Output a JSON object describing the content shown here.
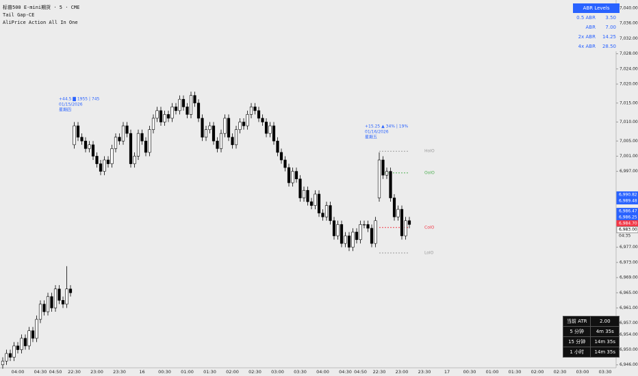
{
  "header": {
    "symbol": "标普500 E-mini期货 · 5 · CME",
    "indicators": [
      "Tail Gap-CE",
      "AliPrice Action All In One"
    ]
  },
  "chart_data": {
    "type": "candlestick",
    "categories": [
      null,
      null,
      null,
      null,
      "04:00",
      null,
      null,
      null,
      null,
      null,
      "04:30",
      null,
      null,
      null,
      "04:50",
      null,
      null,
      null,
      null,
      "22:30",
      null,
      null,
      null,
      null,
      null,
      "23:00",
      null,
      null,
      null,
      null,
      null,
      "23:30",
      null,
      null,
      null,
      null,
      null,
      "16",
      null,
      null,
      null,
      null,
      null,
      "00:30",
      null,
      null,
      null,
      null,
      null,
      "01:00",
      null,
      null,
      null,
      null,
      null,
      "01:30",
      null,
      null,
      null,
      null,
      null,
      "02:00",
      null,
      null,
      null,
      null,
      null,
      "02:30",
      null,
      null,
      null,
      null,
      null,
      "03:00",
      null,
      null,
      null,
      null,
      null,
      "03:30",
      null,
      null,
      null,
      null,
      null,
      "04:00",
      null,
      null,
      null,
      null,
      null,
      "04:30",
      null,
      null,
      null,
      "04:50",
      null,
      null,
      null,
      null,
      "22:30",
      null,
      null,
      null,
      null,
      null,
      "23:00",
      null,
      null,
      null,
      null,
      null,
      "23:30",
      null,
      null,
      null,
      null,
      null,
      "17",
      null,
      null,
      null,
      null,
      null,
      "00:30",
      null,
      null,
      null,
      null,
      null,
      "01:00",
      null,
      null,
      null,
      null,
      null,
      "01:30",
      null,
      null,
      null,
      null,
      null,
      "02:00",
      null,
      null,
      null,
      null,
      null,
      "02:30",
      null,
      null,
      null,
      null,
      null,
      "03:00",
      null,
      null,
      null,
      null,
      null,
      "03:30",
      null,
      null
    ],
    "open": [
      6946,
      6947,
      6949,
      6948,
      6951,
      6950,
      6953,
      6951,
      6955,
      6953,
      6958,
      6962,
      6960,
      6964,
      6961,
      6966,
      6963,
      6962,
      6966,
      7004,
      7009,
      7006,
      7005,
      7003,
      7004,
      7001,
      6999,
      6997,
      7000,
      6999,
      7003,
      7006,
      7005,
      7009,
      7007,
      6999,
      7001,
      7007,
      7005,
      7002,
      7008,
      7011,
      7013,
      7010,
      7012,
      7011,
      7014,
      7013,
      7016,
      7014,
      7012,
      7017,
      7015,
      7011,
      7006,
      7008,
      7009,
      7005,
      7003,
      7007,
      7011,
      7006,
      7004,
      7008,
      7010,
      7009,
      7012,
      7014,
      7013,
      7011,
      7010,
      7007,
      7009,
      7005,
      7002,
      7000,
      6998,
      6994,
      6997,
      6995,
      6990,
      6992,
      6989,
      6988,
      6991,
      6986,
      6985,
      6988,
      6984,
      6980,
      6983,
      6978,
      6980,
      6977,
      6981,
      6979,
      6983,
      6983,
      6982,
      6978,
      6990,
      7000,
      6996,
      6997,
      6990,
      6985,
      6987,
      6980,
      6984,
      null,
      null,
      null,
      null,
      null,
      null,
      null,
      null,
      null,
      null,
      null,
      null,
      null,
      null,
      null,
      null,
      null,
      null,
      null,
      null,
      null,
      null,
      null,
      null,
      null,
      null,
      null,
      null,
      null,
      null,
      null,
      null,
      null,
      null,
      null,
      null,
      null,
      null,
      null,
      null,
      null,
      null,
      null,
      null,
      null,
      null,
      null,
      null,
      null,
      null,
      null,
      null,
      null,
      null
    ],
    "high": [
      6948,
      6950,
      6950,
      6952,
      6952,
      6954,
      6954,
      6956,
      6956,
      6959,
      6963,
      6963,
      6965,
      6965,
      6967,
      6967,
      6964,
      6972,
      6967,
      7010,
      7010,
      7007,
      7006,
      7005,
      7005,
      7002,
      7000,
      7001,
      7001,
      7004,
      7007,
      7007,
      7010,
      7010,
      7008,
      7002,
      7008,
      7008,
      7006,
      7009,
      7012,
      7014,
      7014,
      7013,
      7013,
      7015,
      7015,
      7017,
      7017,
      7015,
      7018,
      7018,
      7016,
      7012,
      7009,
      7010,
      7010,
      7006,
      7008,
      7012,
      7012,
      7007,
      7009,
      7011,
      7011,
      7013,
      7015,
      7015,
      7014,
      7012,
      7011,
      7010,
      7010,
      7006,
      7003,
      7001,
      6999,
      6998,
      6998,
      6996,
      6993,
      6993,
      6990,
      6992,
      6992,
      6987,
      6989,
      6989,
      6985,
      6984,
      6984,
      6981,
      6981,
      6982,
      6982,
      6984,
      6984,
      6984,
      6983,
      6985,
      7002,
      7001,
      6998,
      6998,
      6991,
      6988,
      6988,
      6985,
      6985,
      null,
      null,
      null,
      null,
      null,
      null,
      null,
      null,
      null,
      null,
      null,
      null,
      null,
      null,
      null,
      null,
      null,
      null,
      null,
      null,
      null,
      null,
      null,
      null,
      null,
      null,
      null,
      null,
      null,
      null,
      null,
      null,
      null,
      null,
      null,
      null,
      null,
      null,
      null,
      null,
      null,
      null,
      null,
      null,
      null,
      null,
      null,
      null,
      null,
      null,
      null,
      null,
      null,
      null
    ],
    "low": [
      6945,
      6946,
      6947,
      6947,
      6949,
      6949,
      6950,
      6950,
      6952,
      6952,
      6957,
      6959,
      6959,
      6960,
      6960,
      6962,
      6961,
      6961,
      6964,
      7003,
      7005,
      7004,
      7002,
      7002,
      7000,
      6998,
      6996,
      6996,
      6998,
      6998,
      7002,
      7004,
      7004,
      7006,
      6998,
      6998,
      7000,
      7004,
      7001,
      7001,
      7007,
      7010,
      7009,
      7009,
      7010,
      7010,
      7012,
      7012,
      7013,
      7011,
      7011,
      7014,
      7010,
      7005,
      7005,
      7007,
      7004,
      7002,
      7002,
      7006,
      7005,
      7003,
      7003,
      7007,
      7008,
      7008,
      7011,
      7012,
      7010,
      7009,
      7006,
      7006,
      7004,
      7001,
      6999,
      6997,
      6993,
      6993,
      6994,
      6989,
      6989,
      6988,
      6987,
      6987,
      6985,
      6984,
      6984,
      6983,
      6979,
      6979,
      6977,
      6977,
      6976,
      6976,
      6978,
      6978,
      6982,
      6981,
      6977,
      6977,
      6989,
      6995,
      6995,
      6989,
      6984,
      6984,
      6979,
      6979,
      6982,
      null,
      null,
      null,
      null,
      null,
      null,
      null,
      null,
      null,
      null,
      null,
      null,
      null,
      null,
      null,
      null,
      null,
      null,
      null,
      null,
      null,
      null,
      null,
      null,
      null,
      null,
      null,
      null,
      null,
      null,
      null,
      null,
      null,
      null,
      null,
      null,
      null,
      null,
      null,
      null,
      null,
      null,
      null,
      null,
      null,
      null,
      null,
      null,
      null,
      null,
      null,
      null,
      null,
      null
    ],
    "close": [
      6947,
      6949,
      6948,
      6951,
      6950,
      6953,
      6951,
      6955,
      6953,
      6958,
      6962,
      6960,
      6964,
      6961,
      6966,
      6963,
      6962,
      6966,
      6965,
      7009,
      7006,
      7005,
      7003,
      7004,
      7001,
      6999,
      6997,
      7000,
      6999,
      7003,
      7006,
      7005,
      7009,
      7007,
      6999,
      7001,
      7007,
      7005,
      7002,
      7008,
      7011,
      7013,
      7010,
      7012,
      7011,
      7014,
      7013,
      7016,
      7014,
      7012,
      7017,
      7015,
      7011,
      7006,
      7008,
      7009,
      7005,
      7003,
      7007,
      7011,
      7006,
      7004,
      7008,
      7010,
      7009,
      7012,
      7014,
      7013,
      7011,
      7010,
      7007,
      7009,
      7005,
      7002,
      7000,
      6998,
      6994,
      6997,
      6995,
      6990,
      6992,
      6989,
      6988,
      6991,
      6986,
      6985,
      6988,
      6984,
      6980,
      6983,
      6978,
      6980,
      6977,
      6981,
      6979,
      6983,
      6983,
      6982,
      6978,
      6984,
      7000,
      6996,
      6997,
      6990,
      6985,
      6987,
      6980,
      6984,
      6983,
      null,
      null,
      null,
      null,
      null,
      null,
      null,
      null,
      null,
      null,
      null,
      null,
      null,
      null,
      null,
      null,
      null,
      null,
      null,
      null,
      null,
      null,
      null,
      null,
      null,
      null,
      null,
      null,
      null,
      null,
      null,
      null,
      null,
      null,
      null,
      null,
      null,
      null,
      null,
      null,
      null,
      null,
      null,
      null,
      null,
      null,
      null,
      null,
      null,
      null,
      null,
      null,
      null,
      null
    ],
    "up_color": "#ffffff",
    "down_color": "#000000",
    "ylim": [
      6946,
      7040
    ],
    "yticks": [
      {
        "value": 7040,
        "label": "7,040.00"
      },
      {
        "value": 7036,
        "label": "7,036.00"
      },
      {
        "value": 7032,
        "label": "7,032.00"
      },
      {
        "value": 7028,
        "label": "7,028.00"
      },
      {
        "value": 7024,
        "label": "7,024.00"
      },
      {
        "value": 7020,
        "label": "7,020.00"
      },
      {
        "value": 7015,
        "label": "7,015.00"
      },
      {
        "value": 7010,
        "label": "7,010.00"
      },
      {
        "value": 7005,
        "label": "7,005.00"
      },
      {
        "value": 7001,
        "label": "7,001.00"
      },
      {
        "value": 6997,
        "label": "6,997.00"
      },
      {
        "value": 6977,
        "label": "6,977.00"
      },
      {
        "value": 6973,
        "label": "6,973.00"
      },
      {
        "value": 6969,
        "label": "6,969.00"
      },
      {
        "value": 6965,
        "label": "6,965.00"
      },
      {
        "value": 6961,
        "label": "6,961.00"
      },
      {
        "value": 6957,
        "label": "6,957.00"
      },
      {
        "value": 6954,
        "label": "6,954.00"
      },
      {
        "value": 6950,
        "label": "6,950.00"
      },
      {
        "value": 6946,
        "label": "6,946.00"
      }
    ],
    "price_labels": [
      {
        "value": 6990.82,
        "label": "6,990.82",
        "color": "#2962ff"
      },
      {
        "value": 6989.48,
        "label": "6,989.48",
        "color": "#2962ff"
      },
      {
        "value": 6986.47,
        "label": "6,986.47",
        "color": "#2962ff"
      },
      {
        "value": 6986.25,
        "label": "6,986.25",
        "color": "#2962ff"
      },
      {
        "value": 6984.7,
        "label": "6,984.70",
        "color": "#f23645"
      },
      {
        "value": 6983,
        "label": "6,983.00",
        "color": "#ffffff"
      }
    ],
    "countdown": "04:35",
    "levels": [
      {
        "label": "HoIO",
        "value": 7002.3,
        "color": "#999999"
      },
      {
        "label": "OoIO",
        "value": 6996.6,
        "color": "#4caf50"
      },
      {
        "label": "CoIO",
        "value": 6982.2,
        "color": "#f23645"
      },
      {
        "label": "LoIO",
        "value": 6975.5,
        "color": "#999999"
      }
    ],
    "annotations": [
      {
        "lines": [
          "+44.5 ▇ 1955 | 745",
          "01/15/2026",
          "星期四"
        ]
      },
      {
        "lines": [
          "+15.25 ▲ 34% | 19%",
          "01/16/2026",
          "星期五"
        ]
      }
    ]
  },
  "abr_table": {
    "title": "ABR Levels",
    "rows": [
      [
        "0.5 ABR",
        "3.50"
      ],
      [
        "ABR",
        "7.00"
      ],
      [
        "2x ABR",
        "14.25"
      ],
      [
        "4x ABR",
        "28.50"
      ]
    ]
  },
  "atr_table": {
    "rows": [
      [
        "当前 ATR",
        "2.00"
      ],
      [
        "5 分钟",
        "4m 35s"
      ],
      [
        "15 分钟",
        "14m 35s"
      ],
      [
        "1 小时",
        "14m 35s"
      ]
    ]
  }
}
